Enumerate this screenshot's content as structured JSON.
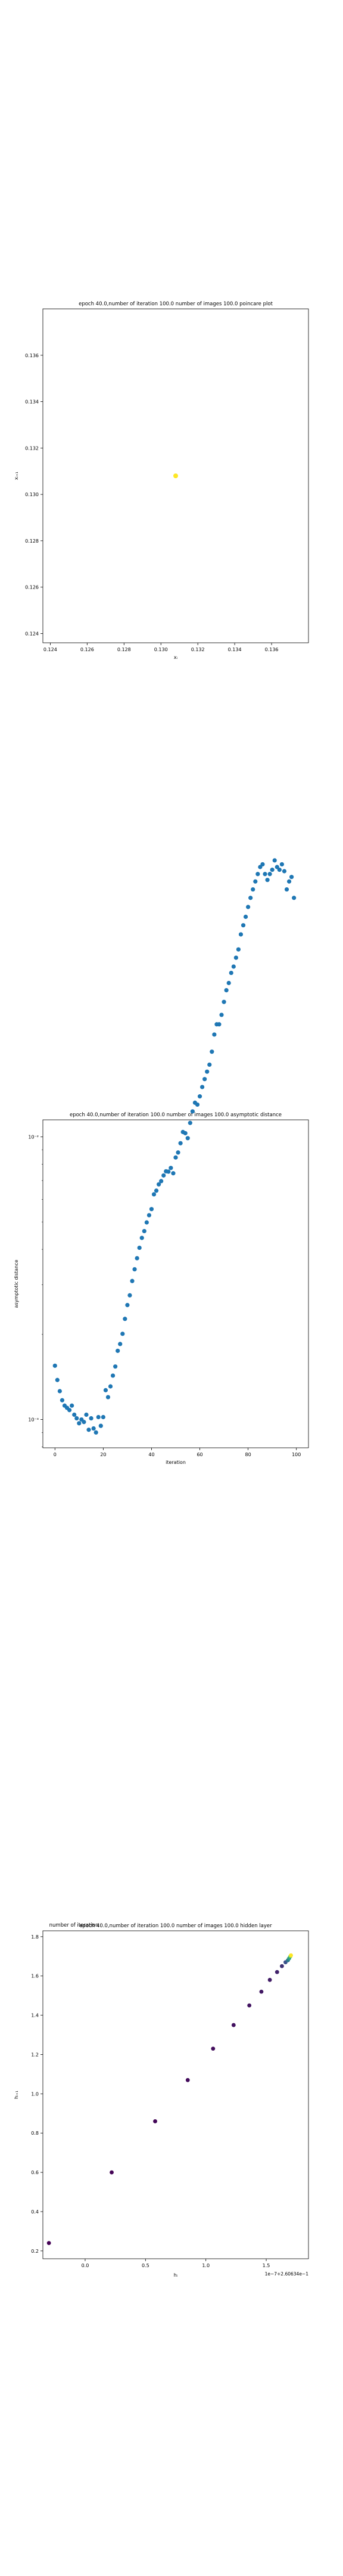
{
  "chart_data": [
    {
      "type": "scatter",
      "title": "epoch 40.0,number of iteration 100.0  number of images 100.0 poincare plot",
      "xlabel": "xᵢ",
      "ylabel": "xᵢ₊₁",
      "xlim": [
        0.1236,
        0.138
      ],
      "ylim": [
        0.1236,
        0.138
      ],
      "xticks": [
        "0.124",
        "0.126",
        "0.128",
        "0.130",
        "0.132",
        "0.134",
        "0.136"
      ],
      "xtick_values": [
        0.124,
        0.126,
        0.128,
        0.13,
        0.132,
        0.134,
        0.136
      ],
      "yticks": [
        "0.124",
        "0.126",
        "0.128",
        "0.130",
        "0.132",
        "0.134",
        "0.136"
      ],
      "ytick_values": [
        0.124,
        0.126,
        0.128,
        0.13,
        0.132,
        0.134,
        0.136
      ],
      "points": [
        {
          "x": 0.1308,
          "y": 0.1308
        }
      ],
      "color": "#fde725"
    },
    {
      "type": "scatter",
      "title": "epoch 40.0,number of iteration 100.0  number of images 100.0 asymptotic distance",
      "xlabel": "iteration",
      "ylabel": "asymptotic distance",
      "yscale": "log",
      "xlim": [
        -5,
        105
      ],
      "ylim_exp": [
        -3.1,
        -1.94
      ],
      "xticks": [
        "0",
        "20",
        "40",
        "60",
        "80",
        "100"
      ],
      "xtick_values": [
        0,
        20,
        40,
        60,
        80,
        100
      ],
      "yticks": [
        "10⁻³",
        "10⁻²"
      ],
      "ytick_exps": [
        -3,
        -2
      ],
      "color": "#1f77b4",
      "y": [
        0.00155,
        0.00138,
        0.00126,
        0.00117,
        0.00112,
        0.0011,
        0.00108,
        0.00112,
        0.00104,
        0.00101,
        0.00097,
        0.001,
        0.00098,
        0.00104,
        0.00092,
        0.00101,
        0.00093,
        0.0009,
        0.00102,
        0.00095,
        0.00102,
        0.00127,
        0.0012,
        0.00131,
        0.00143,
        0.00154,
        0.00175,
        0.00185,
        0.00201,
        0.00227,
        0.00254,
        0.00275,
        0.00309,
        0.0034,
        0.00372,
        0.00405,
        0.00439,
        0.00464,
        0.00498,
        0.00528,
        0.00555,
        0.00626,
        0.00645,
        0.00679,
        0.00697,
        0.0073,
        0.00755,
        0.00753,
        0.00776,
        0.00743,
        0.00845,
        0.0088,
        0.00949,
        0.0104,
        0.0103,
        0.00989,
        0.0112,
        0.0123,
        0.0132,
        0.013,
        0.0139,
        0.015,
        0.016,
        0.017,
        0.018,
        0.02,
        0.023,
        0.025,
        0.025,
        0.027,
        0.03,
        0.033,
        0.035,
        0.038,
        0.04,
        0.043,
        0.046,
        0.052,
        0.056,
        0.06,
        0.065,
        0.07,
        0.075,
        0.08,
        0.085,
        0.09,
        0.092,
        0.085,
        0.081,
        0.085,
        0.088,
        0.095,
        0.09,
        0.088,
        0.092,
        0.087,
        0.075,
        0.08,
        0.083,
        0.07
      ]
    },
    {
      "type": "scatter",
      "title": "epoch 40.0,number of iteration 100.0  number of images 100.0 hidden layer",
      "overlay_text": "number of iteration",
      "xlabel": "hᵢ",
      "ylabel": "hᵢ₊₁",
      "offset_text": "1e−7+2.60634e−1",
      "xlim": [
        -0.35,
        1.85
      ],
      "ylim": [
        0.16,
        1.83
      ],
      "xticks": [
        "0.0",
        "0.5",
        "1.0",
        "1.5"
      ],
      "xtick_values": [
        0.0,
        0.5,
        1.0,
        1.5
      ],
      "yticks": [
        "0.2",
        "0.4",
        "0.6",
        "0.8",
        "1.0",
        "1.2",
        "1.4",
        "1.6",
        "1.8"
      ],
      "ytick_values": [
        0.2,
        0.4,
        0.6,
        0.8,
        1.0,
        1.2,
        1.4,
        1.6,
        1.8
      ],
      "colormap": "viridis",
      "points": [
        {
          "x": -0.3,
          "y": 0.24,
          "c": 0.0
        },
        {
          "x": 0.22,
          "y": 0.6,
          "c": 0.01
        },
        {
          "x": 0.58,
          "y": 0.86,
          "c": 0.02
        },
        {
          "x": 0.85,
          "y": 1.07,
          "c": 0.03
        },
        {
          "x": 1.06,
          "y": 1.23,
          "c": 0.04
        },
        {
          "x": 1.23,
          "y": 1.35,
          "c": 0.05
        },
        {
          "x": 1.36,
          "y": 1.45,
          "c": 0.06
        },
        {
          "x": 1.46,
          "y": 1.52,
          "c": 0.07
        },
        {
          "x": 1.53,
          "y": 1.58,
          "c": 0.08
        },
        {
          "x": 1.59,
          "y": 1.62,
          "c": 0.1
        },
        {
          "x": 1.63,
          "y": 1.65,
          "c": 0.15
        },
        {
          "x": 1.66,
          "y": 1.67,
          "c": 0.25
        },
        {
          "x": 1.68,
          "y": 1.68,
          "c": 0.4
        },
        {
          "x": 1.69,
          "y": 1.69,
          "c": 0.55
        },
        {
          "x": 1.7,
          "y": 1.7,
          "c": 0.75
        },
        {
          "x": 1.705,
          "y": 1.705,
          "c": 1.0
        }
      ]
    }
  ]
}
